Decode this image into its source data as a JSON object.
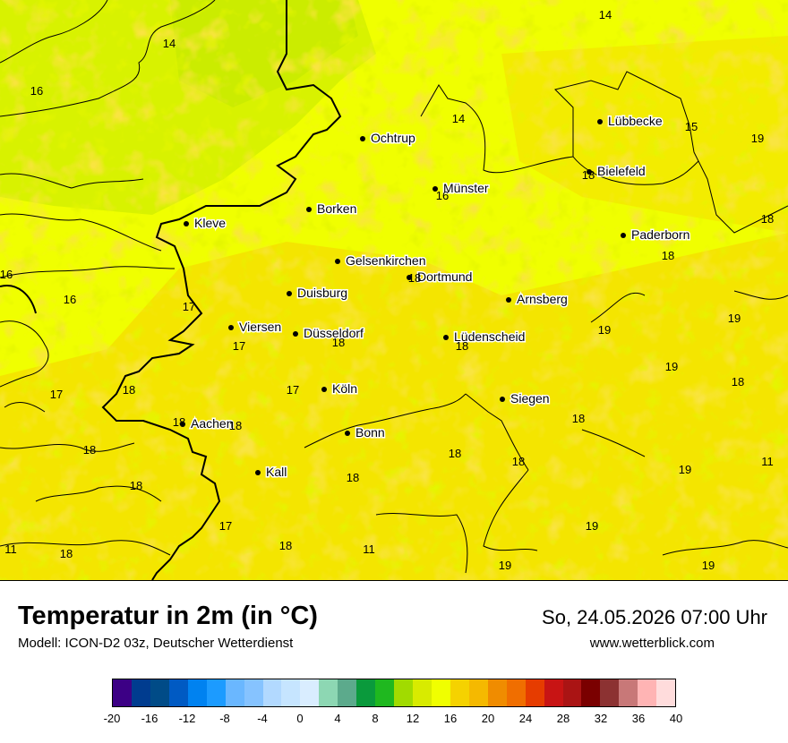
{
  "title": "Temperatur in 2m (in °C)",
  "model": "Modell: ICON-D2 03z, Deutscher Wetterdienst",
  "datetime": "So, 24.05.2026 07:00 Uhr",
  "site": "www.wetterblick.com",
  "cities": [
    {
      "name": "Lübbecke"
    },
    {
      "name": "Ochtrup"
    },
    {
      "name": "Bielefeld"
    },
    {
      "name": "Münster"
    },
    {
      "name": "Borken"
    },
    {
      "name": "Kleve"
    },
    {
      "name": "Paderborn"
    },
    {
      "name": "Gelsenkirchen"
    },
    {
      "name": "Dortmund"
    },
    {
      "name": "Duisburg"
    },
    {
      "name": "Arnsberg"
    },
    {
      "name": "Viersen"
    },
    {
      "name": "Düsseldorf"
    },
    {
      "name": "Lüdenscheid"
    },
    {
      "name": "Köln"
    },
    {
      "name": "Siegen"
    },
    {
      "name": "Aachen"
    },
    {
      "name": "Bonn"
    },
    {
      "name": "Kall"
    }
  ],
  "values": [
    "14",
    "14",
    "16",
    "14",
    "15",
    "19",
    "18",
    "16",
    "18",
    "18",
    "16",
    "16",
    "17",
    "17",
    "18",
    "19",
    "18",
    "19",
    "17",
    "18",
    "18",
    "17",
    "18",
    "18",
    "18",
    "19",
    "18",
    "18",
    "18",
    "18",
    "18",
    "18",
    "19",
    "19",
    "11",
    "11",
    "18",
    "17",
    "18",
    "11",
    "19",
    "19"
  ],
  "legend": {
    "colors": [
      "#3c0085",
      "#003c8f",
      "#004b87",
      "#005ac3",
      "#0082f0",
      "#1c9bff",
      "#6ab7ff",
      "#86c3ff",
      "#b2d9ff",
      "#c6e5ff",
      "#d9edff",
      "#8dd7b3",
      "#5caa8c",
      "#0a9a3c",
      "#1fb81f",
      "#a1db00",
      "#d8eb00",
      "#f0ff00",
      "#f5d200",
      "#f5b900",
      "#f08c00",
      "#f06e00",
      "#e63c00",
      "#c81414",
      "#aa1414",
      "#7a0000",
      "#8c3232",
      "#c87878",
      "#ffb4b4",
      "#ffdcdc"
    ],
    "ticks": [
      "-20",
      "-16",
      "-12",
      "-8",
      "-4",
      "0",
      "4",
      "8",
      "12",
      "16",
      "20",
      "24",
      "28",
      "32",
      "36",
      "40"
    ]
  }
}
